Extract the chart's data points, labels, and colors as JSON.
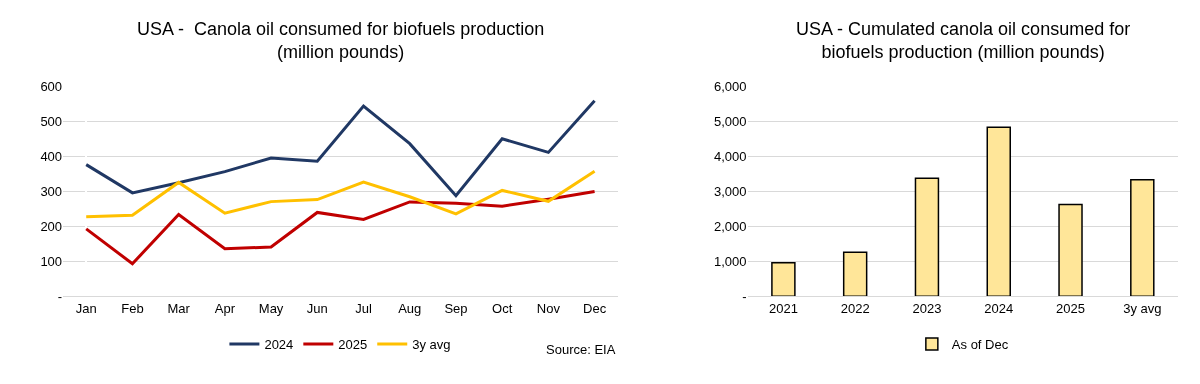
{
  "chart_data": [
    {
      "type": "line",
      "title": "USA -  Canola oil consumed for biofuels production\n(million pounds)",
      "categories": [
        "Jan",
        "Feb",
        "Mar",
        "Apr",
        "May",
        "Jun",
        "Jul",
        "Aug",
        "Sep",
        "Oct",
        "Nov",
        "Dec"
      ],
      "series": [
        {
          "name": "2024",
          "color": "#203864",
          "values": [
            377,
            296,
            325,
            357,
            396,
            387,
            545,
            437,
            288,
            451,
            412,
            560
          ]
        },
        {
          "name": "2025",
          "color": "#c00000",
          "values": [
            193,
            93,
            234,
            136,
            141,
            240,
            220,
            270,
            266,
            258,
            278,
            300
          ]
        },
        {
          "name": "3y avg",
          "color": "#ffc000",
          "values": [
            228,
            232,
            326,
            238,
            271,
            277,
            327,
            285,
            236,
            303,
            272,
            358
          ]
        }
      ],
      "ylim": [
        0,
        600
      ],
      "yticks": [
        {
          "value": 0,
          "label": "-"
        },
        100,
        200,
        300,
        400,
        500,
        600
      ],
      "grid": "y",
      "legend": "bottom",
      "marker": "none",
      "line_style": "solid",
      "annotations": [
        "Source: EIA"
      ]
    },
    {
      "type": "bar",
      "title": "USA - Cumulated canola oil consumed for\nbiofuels production (million pounds)",
      "categories": [
        "2021",
        "2022",
        "2023",
        "2024",
        "2025",
        "3y avg"
      ],
      "series": [
        {
          "name": "As of Dec",
          "color": "#ffe699",
          "values": [
            960,
            1260,
            3380,
            4840,
            2630,
            3340
          ]
        }
      ],
      "ylim": [
        0,
        6000
      ],
      "yticks": [
        {
          "value": 0,
          "label": "-"
        },
        {
          "value": 1000,
          "label": "1,000"
        },
        {
          "value": 2000,
          "label": "2,000"
        },
        {
          "value": 3000,
          "label": "3,000"
        },
        {
          "value": 4000,
          "label": "4,000"
        },
        {
          "value": 5000,
          "label": "5,000"
        },
        {
          "value": 6000,
          "label": "6,000"
        }
      ],
      "grid": "y",
      "legend": "bottom"
    }
  ]
}
